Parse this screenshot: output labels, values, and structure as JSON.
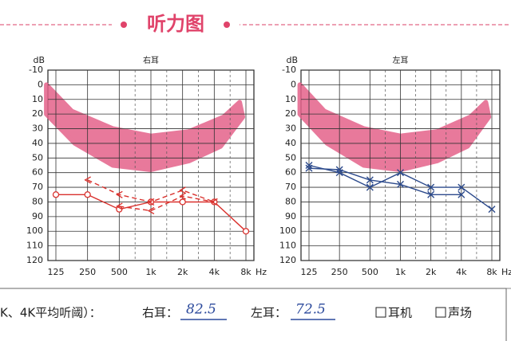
{
  "title": "听力图",
  "footer": {
    "label": "K、4K平均听阈）：",
    "right_label": "右耳：",
    "right_value": "82.5",
    "left_label": "左耳：",
    "left_value": "72.5",
    "option1": "耳机",
    "option2": "声场"
  },
  "chart_data": [
    {
      "type": "line",
      "title": "右耳",
      "y_label": "dB",
      "x_label": "Hz",
      "categories": [
        "125",
        "250",
        "500",
        "1k",
        "2k",
        "4k",
        "8k"
      ],
      "ylim": [
        120,
        -10
      ],
      "yticks": [
        -10,
        0,
        10,
        20,
        30,
        40,
        50,
        60,
        70,
        80,
        90,
        100,
        110,
        120
      ],
      "grid": true,
      "series": [
        {
          "color": "#d9302c",
          "marker": "o",
          "dashed": false,
          "values": [
            75,
            75,
            85,
            80,
            80,
            80,
            100
          ]
        },
        {
          "color": "#d9302c",
          "marker": "<",
          "dashed": true,
          "values": [
            null,
            65,
            75,
            80,
            72,
            80,
            null
          ]
        },
        {
          "color": "#d9302c",
          "marker": "<",
          "dashed": true,
          "values": [
            null,
            null,
            83,
            86,
            76,
            80,
            null
          ]
        }
      ]
    },
    {
      "type": "line",
      "title": "左耳",
      "y_label": "dB",
      "x_label": "Hz",
      "categories": [
        "125",
        "250",
        "500",
        "1k",
        "2k",
        "4k",
        "8k"
      ],
      "ylim": [
        120,
        -10
      ],
      "yticks": [
        -10,
        0,
        10,
        20,
        30,
        40,
        50,
        60,
        70,
        80,
        90,
        100,
        110,
        120
      ],
      "grid": true,
      "series": [
        {
          "color": "#2c4a8c",
          "marker": "x",
          "dashed": false,
          "values": [
            55,
            60,
            70,
            60,
            70,
            70,
            85
          ]
        },
        {
          "color": "#2c4a8c",
          "marker": "x",
          "dashed": false,
          "values": [
            57,
            58,
            65,
            68,
            75,
            75,
            null
          ]
        }
      ]
    }
  ]
}
